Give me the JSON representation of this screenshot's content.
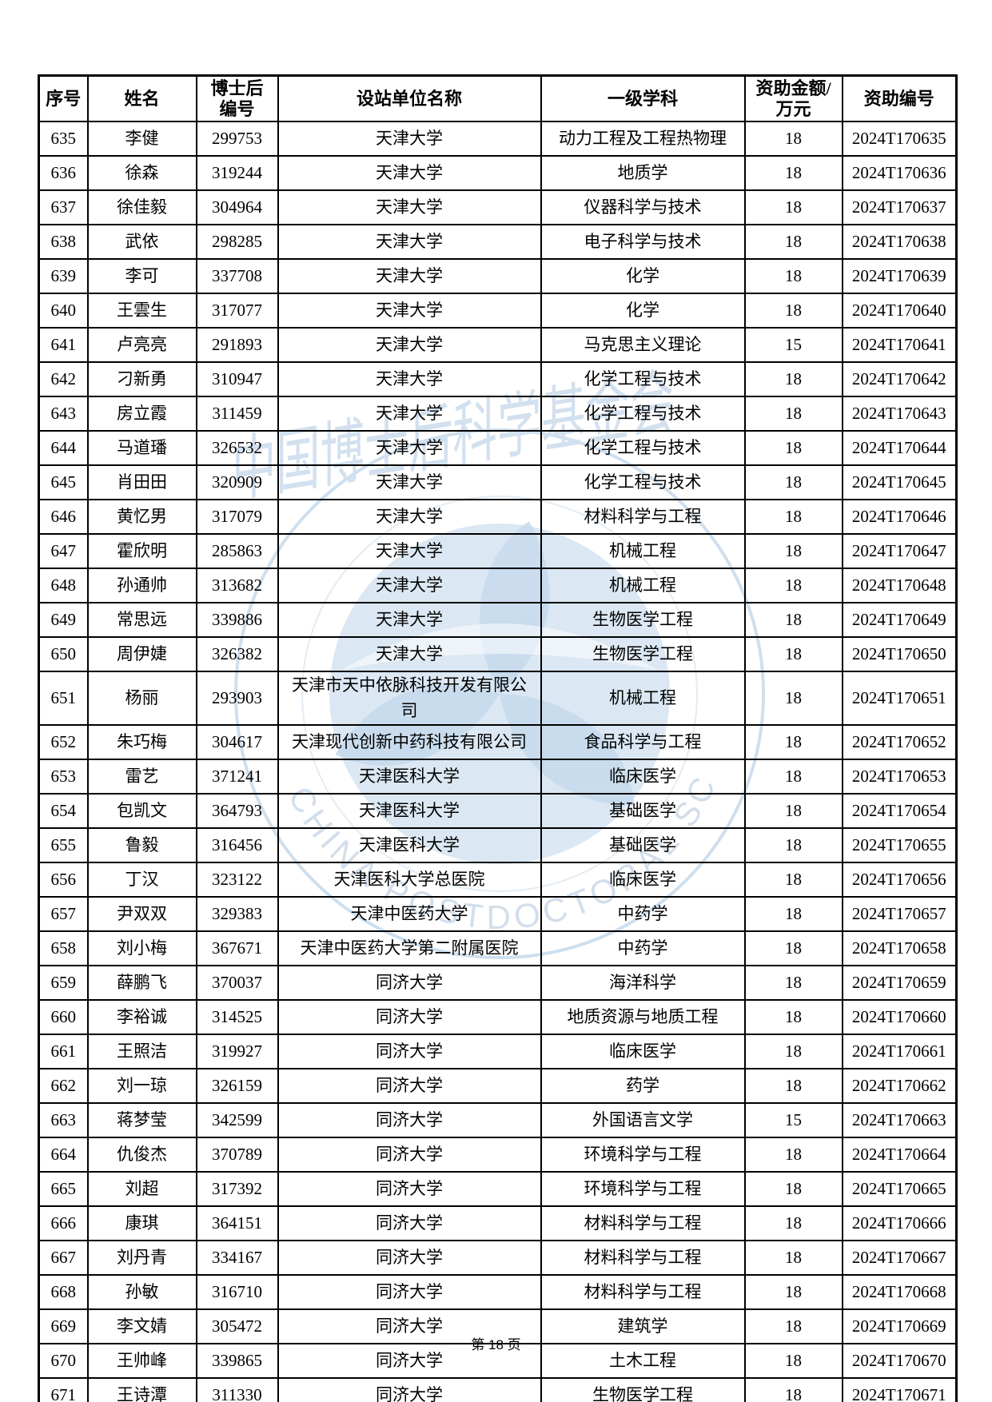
{
  "page": {
    "footer_label": "第 18 页",
    "page_number": "18"
  },
  "watermark": {
    "ring_text": "CHINA POSTDOCTORAL SCIENCE FOUNDATION",
    "calligraphy_text": "中国博士后科学基金会",
    "color": "#a9c6e2"
  },
  "table": {
    "columns": [
      {
        "key": "no",
        "label": "序号"
      },
      {
        "key": "name",
        "label": "姓名"
      },
      {
        "key": "postdoc_id",
        "label": "博士后\n编号"
      },
      {
        "key": "institution",
        "label": "设站单位名称"
      },
      {
        "key": "discipline",
        "label": "一级学科"
      },
      {
        "key": "amount",
        "label": "资助金额/\n万元"
      },
      {
        "key": "grant_no",
        "label": "资助编号"
      }
    ],
    "rows": [
      {
        "no": "635",
        "name": "李健",
        "postdoc_id": "299753",
        "institution": "天津大学",
        "discipline": "动力工程及工程热物理",
        "amount": "18",
        "grant_no": "2024T170635"
      },
      {
        "no": "636",
        "name": "徐森",
        "postdoc_id": "319244",
        "institution": "天津大学",
        "discipline": "地质学",
        "amount": "18",
        "grant_no": "2024T170636"
      },
      {
        "no": "637",
        "name": "徐佳毅",
        "postdoc_id": "304964",
        "institution": "天津大学",
        "discipline": "仪器科学与技术",
        "amount": "18",
        "grant_no": "2024T170637"
      },
      {
        "no": "638",
        "name": "武依",
        "postdoc_id": "298285",
        "institution": "天津大学",
        "discipline": "电子科学与技术",
        "amount": "18",
        "grant_no": "2024T170638"
      },
      {
        "no": "639",
        "name": "李可",
        "postdoc_id": "337708",
        "institution": "天津大学",
        "discipline": "化学",
        "amount": "18",
        "grant_no": "2024T170639"
      },
      {
        "no": "640",
        "name": "王雲生",
        "postdoc_id": "317077",
        "institution": "天津大学",
        "discipline": "化学",
        "amount": "18",
        "grant_no": "2024T170640"
      },
      {
        "no": "641",
        "name": "卢亮亮",
        "postdoc_id": "291893",
        "institution": "天津大学",
        "discipline": "马克思主义理论",
        "amount": "15",
        "grant_no": "2024T170641"
      },
      {
        "no": "642",
        "name": "刁新勇",
        "postdoc_id": "310947",
        "institution": "天津大学",
        "discipline": "化学工程与技术",
        "amount": "18",
        "grant_no": "2024T170642"
      },
      {
        "no": "643",
        "name": "房立霞",
        "postdoc_id": "311459",
        "institution": "天津大学",
        "discipline": "化学工程与技术",
        "amount": "18",
        "grant_no": "2024T170643"
      },
      {
        "no": "644",
        "name": "马道璠",
        "postdoc_id": "326532",
        "institution": "天津大学",
        "discipline": "化学工程与技术",
        "amount": "18",
        "grant_no": "2024T170644"
      },
      {
        "no": "645",
        "name": "肖田田",
        "postdoc_id": "320909",
        "institution": "天津大学",
        "discipline": "化学工程与技术",
        "amount": "18",
        "grant_no": "2024T170645"
      },
      {
        "no": "646",
        "name": "黄忆男",
        "postdoc_id": "317079",
        "institution": "天津大学",
        "discipline": "材料科学与工程",
        "amount": "18",
        "grant_no": "2024T170646"
      },
      {
        "no": "647",
        "name": "霍欣明",
        "postdoc_id": "285863",
        "institution": "天津大学",
        "discipline": "机械工程",
        "amount": "18",
        "grant_no": "2024T170647"
      },
      {
        "no": "648",
        "name": "孙通帅",
        "postdoc_id": "313682",
        "institution": "天津大学",
        "discipline": "机械工程",
        "amount": "18",
        "grant_no": "2024T170648"
      },
      {
        "no": "649",
        "name": "常思远",
        "postdoc_id": "339886",
        "institution": "天津大学",
        "discipline": "生物医学工程",
        "amount": "18",
        "grant_no": "2024T170649"
      },
      {
        "no": "650",
        "name": "周伊婕",
        "postdoc_id": "326382",
        "institution": "天津大学",
        "discipline": "生物医学工程",
        "amount": "18",
        "grant_no": "2024T170650"
      },
      {
        "no": "651",
        "name": "杨丽",
        "postdoc_id": "293903",
        "institution": "天津市天中依脉科技开发有限公司",
        "discipline": "机械工程",
        "amount": "18",
        "grant_no": "2024T170651"
      },
      {
        "no": "652",
        "name": "朱巧梅",
        "postdoc_id": "304617",
        "institution": "天津现代创新中药科技有限公司",
        "discipline": "食品科学与工程",
        "amount": "18",
        "grant_no": "2024T170652"
      },
      {
        "no": "653",
        "name": "雷艺",
        "postdoc_id": "371241",
        "institution": "天津医科大学",
        "discipline": "临床医学",
        "amount": "18",
        "grant_no": "2024T170653"
      },
      {
        "no": "654",
        "name": "包凯文",
        "postdoc_id": "364793",
        "institution": "天津医科大学",
        "discipline": "基础医学",
        "amount": "18",
        "grant_no": "2024T170654"
      },
      {
        "no": "655",
        "name": "鲁毅",
        "postdoc_id": "316456",
        "institution": "天津医科大学",
        "discipline": "基础医学",
        "amount": "18",
        "grant_no": "2024T170655"
      },
      {
        "no": "656",
        "name": "丁汉",
        "postdoc_id": "323122",
        "institution": "天津医科大学总医院",
        "discipline": "临床医学",
        "amount": "18",
        "grant_no": "2024T170656"
      },
      {
        "no": "657",
        "name": "尹双双",
        "postdoc_id": "329383",
        "institution": "天津中医药大学",
        "discipline": "中药学",
        "amount": "18",
        "grant_no": "2024T170657"
      },
      {
        "no": "658",
        "name": "刘小梅",
        "postdoc_id": "367671",
        "institution": "天津中医药大学第二附属医院",
        "discipline": "中药学",
        "amount": "18",
        "grant_no": "2024T170658"
      },
      {
        "no": "659",
        "name": "薛鹏飞",
        "postdoc_id": "370037",
        "institution": "同济大学",
        "discipline": "海洋科学",
        "amount": "18",
        "grant_no": "2024T170659"
      },
      {
        "no": "660",
        "name": "李裕诚",
        "postdoc_id": "314525",
        "institution": "同济大学",
        "discipline": "地质资源与地质工程",
        "amount": "18",
        "grant_no": "2024T170660"
      },
      {
        "no": "661",
        "name": "王照洁",
        "postdoc_id": "319927",
        "institution": "同济大学",
        "discipline": "临床医学",
        "amount": "18",
        "grant_no": "2024T170661"
      },
      {
        "no": "662",
        "name": "刘一琼",
        "postdoc_id": "326159",
        "institution": "同济大学",
        "discipline": "药学",
        "amount": "18",
        "grant_no": "2024T170662"
      },
      {
        "no": "663",
        "name": "蒋梦莹",
        "postdoc_id": "342599",
        "institution": "同济大学",
        "discipline": "外国语言文学",
        "amount": "15",
        "grant_no": "2024T170663"
      },
      {
        "no": "664",
        "name": "仇俊杰",
        "postdoc_id": "370789",
        "institution": "同济大学",
        "discipline": "环境科学与工程",
        "amount": "18",
        "grant_no": "2024T170664"
      },
      {
        "no": "665",
        "name": "刘超",
        "postdoc_id": "317392",
        "institution": "同济大学",
        "discipline": "环境科学与工程",
        "amount": "18",
        "grant_no": "2024T170665"
      },
      {
        "no": "666",
        "name": "康琪",
        "postdoc_id": "364151",
        "institution": "同济大学",
        "discipline": "材料科学与工程",
        "amount": "18",
        "grant_no": "2024T170666"
      },
      {
        "no": "667",
        "name": "刘丹青",
        "postdoc_id": "334167",
        "institution": "同济大学",
        "discipline": "材料科学与工程",
        "amount": "18",
        "grant_no": "2024T170667"
      },
      {
        "no": "668",
        "name": "孙敏",
        "postdoc_id": "316710",
        "institution": "同济大学",
        "discipline": "材料科学与工程",
        "amount": "18",
        "grant_no": "2024T170668"
      },
      {
        "no": "669",
        "name": "李文婧",
        "postdoc_id": "305472",
        "institution": "同济大学",
        "discipline": "建筑学",
        "amount": "18",
        "grant_no": "2024T170669"
      },
      {
        "no": "670",
        "name": "王帅峰",
        "postdoc_id": "339865",
        "institution": "同济大学",
        "discipline": "土木工程",
        "amount": "18",
        "grant_no": "2024T170670"
      },
      {
        "no": "671",
        "name": "王诗潭",
        "postdoc_id": "311330",
        "institution": "同济大学",
        "discipline": "生物医学工程",
        "amount": "18",
        "grant_no": "2024T170671"
      }
    ]
  }
}
